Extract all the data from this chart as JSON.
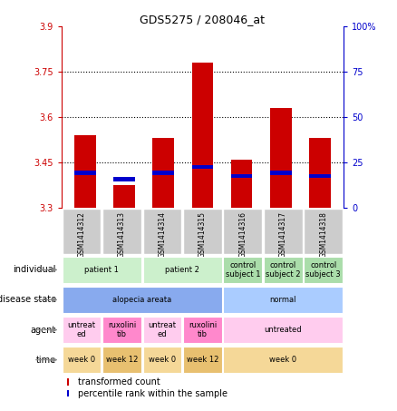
{
  "title": "GDS5275 / 208046_at",
  "samples": [
    "GSM1414312",
    "GSM1414313",
    "GSM1414314",
    "GSM1414315",
    "GSM1414316",
    "GSM1414317",
    "GSM1414318"
  ],
  "red_values": [
    3.54,
    3.375,
    3.53,
    3.78,
    3.46,
    3.63,
    3.53
  ],
  "blue_values": [
    3.415,
    3.395,
    3.415,
    3.435,
    3.405,
    3.415,
    3.405
  ],
  "ylim": [
    3.3,
    3.9
  ],
  "yticks_left": [
    3.3,
    3.45,
    3.6,
    3.75,
    3.9
  ],
  "yticks_right": [
    0,
    25,
    50,
    75,
    100
  ],
  "grid_lines": [
    3.45,
    3.6,
    3.75
  ],
  "bar_width": 0.55,
  "individual_labels": [
    {
      "text": "patient 1",
      "cols": [
        0,
        1
      ],
      "color": "#ccf0cc"
    },
    {
      "text": "patient 2",
      "cols": [
        2,
        3
      ],
      "color": "#ccf0cc"
    },
    {
      "text": "control\nsubject 1",
      "cols": [
        4,
        4
      ],
      "color": "#aaddaa"
    },
    {
      "text": "control\nsubject 2",
      "cols": [
        5,
        5
      ],
      "color": "#aaddaa"
    },
    {
      "text": "control\nsubject 3",
      "cols": [
        6,
        6
      ],
      "color": "#aaddaa"
    }
  ],
  "disease_labels": [
    {
      "text": "alopecia areata",
      "cols": [
        0,
        3
      ],
      "color": "#88aaee"
    },
    {
      "text": "normal",
      "cols": [
        4,
        6
      ],
      "color": "#aaccff"
    }
  ],
  "agent_labels": [
    {
      "text": "untreat\ned",
      "cols": [
        0,
        0
      ],
      "color": "#ffccee"
    },
    {
      "text": "ruxolini\ntib",
      "cols": [
        1,
        1
      ],
      "color": "#ff88cc"
    },
    {
      "text": "untreat\ned",
      "cols": [
        2,
        2
      ],
      "color": "#ffccee"
    },
    {
      "text": "ruxolini\ntib",
      "cols": [
        3,
        3
      ],
      "color": "#ff88cc"
    },
    {
      "text": "untreated",
      "cols": [
        4,
        6
      ],
      "color": "#ffccee"
    }
  ],
  "time_labels": [
    {
      "text": "week 0",
      "cols": [
        0,
        0
      ],
      "color": "#f5d898"
    },
    {
      "text": "week 12",
      "cols": [
        1,
        1
      ],
      "color": "#e8c070"
    },
    {
      "text": "week 0",
      "cols": [
        2,
        2
      ],
      "color": "#f5d898"
    },
    {
      "text": "week 12",
      "cols": [
        3,
        3
      ],
      "color": "#e8c070"
    },
    {
      "text": "week 0",
      "cols": [
        4,
        6
      ],
      "color": "#f5d898"
    }
  ],
  "legend_items": [
    {
      "label": "transformed count",
      "color": "#cc0000"
    },
    {
      "label": "percentile rank within the sample",
      "color": "#0000cc"
    }
  ],
  "row_labels": [
    "individual",
    "disease state",
    "agent",
    "time"
  ],
  "bar_color": "#cc0000",
  "blue_color": "#0000cc",
  "left_tick_color": "#cc0000",
  "right_tick_color": "#0000cc",
  "sample_bg": "#cccccc",
  "chart_bg": "#ffffff"
}
